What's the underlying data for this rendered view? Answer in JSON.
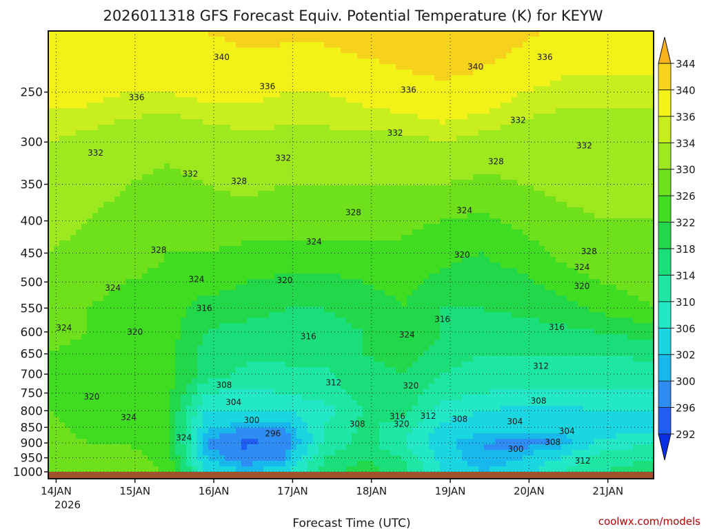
{
  "chart_data": {
    "type": "heatmap",
    "title": "2026011318 GFS Forecast Equiv. Potential Temperature (K) for KEYW",
    "xlabel": "Forecast Time (UTC)",
    "ylabel": "",
    "x_tick_labels": [
      "14JAN",
      "15JAN",
      "16JAN",
      "17JAN",
      "18JAN",
      "19JAN",
      "20JAN",
      "21JAN"
    ],
    "x_tick_year": "2026",
    "x_range_days": [
      0,
      7.68
    ],
    "y_ticks": [
      250,
      300,
      350,
      400,
      450,
      500,
      550,
      600,
      650,
      700,
      750,
      800,
      850,
      900,
      950,
      1000
    ],
    "y_range": [
      200,
      1000
    ],
    "y_scale": "log-pressure",
    "y_units": "hPa",
    "grid": true,
    "colorbar": {
      "levels": [
        292,
        296,
        300,
        302,
        306,
        310,
        314,
        318,
        322,
        326,
        330,
        334,
        336,
        340,
        344
      ],
      "colors": [
        "#0a2ee6",
        "#1f5ef0",
        "#2f8cf2",
        "#18b8ec",
        "#1ad6e0",
        "#22e8c6",
        "#1ee6a4",
        "#19de7a",
        "#22d84a",
        "#3fdc22",
        "#6fe01c",
        "#9ee820",
        "#c8ee1e",
        "#f2f218",
        "#f6d21c",
        "#f7b21e"
      ]
    },
    "contour_labels": [
      {
        "v": "340",
        "x": 2.2,
        "y": 220
      },
      {
        "v": "340",
        "x": 5.42,
        "y": 228
      },
      {
        "v": "336",
        "x": 6.3,
        "y": 220
      },
      {
        "v": "336",
        "x": 1.12,
        "y": 255
      },
      {
        "v": "336",
        "x": 2.78,
        "y": 245
      },
      {
        "v": "336",
        "x": 4.57,
        "y": 248
      },
      {
        "v": "332",
        "x": 0.6,
        "y": 312
      },
      {
        "v": "332",
        "x": 1.8,
        "y": 337
      },
      {
        "v": "332",
        "x": 2.98,
        "y": 318
      },
      {
        "v": "332",
        "x": 4.4,
        "y": 290
      },
      {
        "v": "332",
        "x": 5.96,
        "y": 277
      },
      {
        "v": "332",
        "x": 6.8,
        "y": 304
      },
      {
        "v": "328",
        "x": 1.4,
        "y": 445
      },
      {
        "v": "328",
        "x": 2.42,
        "y": 346
      },
      {
        "v": "328",
        "x": 3.87,
        "y": 388
      },
      {
        "v": "328",
        "x": 5.68,
        "y": 322
      },
      {
        "v": "328",
        "x": 6.86,
        "y": 447
      },
      {
        "v": "324",
        "x": 0.82,
        "y": 511
      },
      {
        "v": "324",
        "x": 0.2,
        "y": 591
      },
      {
        "v": "324",
        "x": 1.88,
        "y": 495
      },
      {
        "v": "324",
        "x": 3.37,
        "y": 432
      },
      {
        "v": "324",
        "x": 5.28,
        "y": 385
      },
      {
        "v": "324",
        "x": 4.55,
        "y": 606
      },
      {
        "v": "324",
        "x": 6.77,
        "y": 474
      },
      {
        "v": "324",
        "x": 1.02,
        "y": 820
      },
      {
        "v": "324",
        "x": 1.72,
        "y": 883
      },
      {
        "v": "320",
        "x": 1.1,
        "y": 600
      },
      {
        "v": "320",
        "x": 3.0,
        "y": 497
      },
      {
        "v": "320",
        "x": 5.25,
        "y": 453
      },
      {
        "v": "320",
        "x": 6.77,
        "y": 508
      },
      {
        "v": "320",
        "x": 0.55,
        "y": 760
      },
      {
        "v": "320",
        "x": 4.6,
        "y": 730
      },
      {
        "v": "320",
        "x": 4.48,
        "y": 840
      },
      {
        "v": "316",
        "x": 1.98,
        "y": 550
      },
      {
        "v": "316",
        "x": 3.3,
        "y": 610
      },
      {
        "v": "316",
        "x": 5.0,
        "y": 573
      },
      {
        "v": "316",
        "x": 6.45,
        "y": 590
      },
      {
        "v": "316",
        "x": 4.43,
        "y": 817
      },
      {
        "v": "312",
        "x": 3.62,
        "y": 722
      },
      {
        "v": "312",
        "x": 6.25,
        "y": 680
      },
      {
        "v": "312",
        "x": 4.82,
        "y": 816
      },
      {
        "v": "312",
        "x": 6.78,
        "y": 960
      },
      {
        "v": "308",
        "x": 2.23,
        "y": 728
      },
      {
        "v": "308",
        "x": 6.22,
        "y": 772
      },
      {
        "v": "308",
        "x": 3.92,
        "y": 840
      },
      {
        "v": "308",
        "x": 5.22,
        "y": 825
      },
      {
        "v": "308",
        "x": 6.4,
        "y": 898
      },
      {
        "v": "304",
        "x": 2.35,
        "y": 776
      },
      {
        "v": "304",
        "x": 5.92,
        "y": 832
      },
      {
        "v": "304",
        "x": 6.58,
        "y": 862
      },
      {
        "v": "300",
        "x": 2.58,
        "y": 828
      },
      {
        "v": "300",
        "x": 5.93,
        "y": 920
      },
      {
        "v": "296",
        "x": 2.85,
        "y": 870
      }
    ],
    "fields": {
      "pressure_levels": [
        200,
        250,
        300,
        350,
        400,
        450,
        500,
        550,
        600,
        650,
        700,
        750,
        800,
        850,
        900,
        950,
        1000
      ],
      "time_days": [
        0,
        0.5,
        1,
        1.5,
        2,
        2.5,
        3,
        3.5,
        4,
        4.5,
        5,
        5.5,
        6,
        6.5,
        7,
        7.68
      ],
      "theta_e_K": [
        [
          340,
          340,
          339,
          339,
          340,
          341,
          341,
          341,
          342,
          343,
          344,
          343,
          341,
          339,
          338,
          338
        ],
        [
          337,
          337,
          336,
          336,
          337,
          337,
          336,
          336,
          337,
          338,
          339,
          338,
          336,
          335,
          335,
          335
        ],
        [
          334,
          333,
          332,
          331,
          332,
          333,
          333,
          333,
          333,
          333,
          334,
          333,
          332,
          332,
          332,
          332
        ],
        [
          332,
          331,
          330,
          329,
          330,
          331,
          330,
          330,
          330,
          330,
          330,
          329,
          330,
          331,
          331,
          331
        ],
        [
          331,
          330,
          329,
          327,
          328,
          328,
          328,
          328,
          328,
          327,
          326,
          325,
          327,
          329,
          330,
          330
        ],
        [
          330,
          329,
          328,
          326,
          326,
          325,
          325,
          324,
          325,
          325,
          323,
          322,
          324,
          327,
          329,
          330
        ],
        [
          329,
          327,
          326,
          325,
          324,
          322,
          321,
          321,
          322,
          323,
          321,
          320,
          321,
          324,
          326,
          328
        ],
        [
          328,
          326,
          325,
          324,
          320,
          320,
          318,
          318,
          320,
          322,
          318,
          318,
          319,
          320,
          323,
          326
        ],
        [
          327,
          326,
          324,
          324,
          318,
          316,
          316,
          316,
          318,
          322,
          318,
          316,
          316,
          317,
          318,
          320
        ],
        [
          326,
          325,
          324,
          324,
          316,
          315,
          315,
          316,
          318,
          320,
          316,
          314,
          314,
          314,
          314,
          315
        ],
        [
          325,
          324,
          323,
          324,
          316,
          313,
          313,
          313,
          316,
          318,
          314,
          312,
          312,
          312,
          312,
          312
        ],
        [
          324,
          323,
          322,
          324,
          310,
          309,
          310,
          312,
          316,
          316,
          312,
          310,
          309,
          309,
          309,
          309
        ],
        [
          326,
          324,
          322,
          323,
          306,
          306,
          306,
          308,
          314,
          316,
          308,
          306,
          305,
          305,
          306,
          306
        ],
        [
          327,
          325,
          324,
          323,
          303,
          300,
          300,
          310,
          315,
          312,
          305,
          303,
          303,
          303,
          303,
          305
        ],
        [
          327,
          326,
          326,
          324,
          300,
          295,
          297,
          310,
          316,
          310,
          303,
          300,
          299,
          300,
          307,
          310
        ],
        [
          328,
          327,
          327,
          325,
          302,
          298,
          300,
          314,
          318,
          314,
          304,
          300,
          302,
          306,
          312,
          314
        ],
        [
          328,
          328,
          327,
          326,
          306,
          302,
          304,
          316,
          320,
          316,
          306,
          302,
          304,
          310,
          314,
          316
        ]
      ]
    }
  },
  "credit": "coolwx.com/models"
}
